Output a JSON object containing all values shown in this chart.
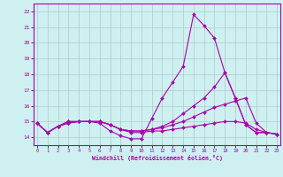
{
  "xlabel": "Windchill (Refroidissement éolien,°C)",
  "background_color": "#cff0f0",
  "grid_color": "#aacccc",
  "line_color": "#aa00aa",
  "x_ticks": [
    0,
    1,
    2,
    3,
    4,
    5,
    6,
    7,
    8,
    9,
    10,
    11,
    12,
    13,
    14,
    15,
    16,
    17,
    18,
    19,
    20,
    21,
    22,
    23
  ],
  "y_ticks": [
    14,
    15,
    16,
    17,
    18,
    19,
    20,
    21,
    22
  ],
  "xlim": [
    -0.3,
    23.3
  ],
  "ylim": [
    13.5,
    22.5
  ],
  "lines": [
    {
      "x": [
        0,
        1,
        2,
        3,
        4,
        5,
        6,
        7,
        8,
        9,
        10,
        11,
        12,
        13,
        14,
        15,
        16,
        17,
        18,
        19,
        20,
        21,
        22,
        23
      ],
      "y": [
        14.9,
        14.3,
        14.7,
        14.9,
        15.0,
        15.0,
        14.9,
        14.4,
        14.1,
        13.9,
        13.9,
        15.2,
        16.5,
        17.5,
        18.5,
        21.8,
        21.1,
        20.3,
        18.1,
        16.5,
        14.8,
        14.3,
        14.3,
        14.2
      ]
    },
    {
      "x": [
        0,
        1,
        2,
        3,
        4,
        5,
        6,
        7,
        8,
        9,
        10,
        11,
        12,
        13,
        14,
        15,
        16,
        17,
        18,
        19,
        20,
        21,
        22,
        23
      ],
      "y": [
        14.9,
        14.3,
        14.7,
        15.0,
        15.0,
        15.0,
        15.0,
        14.8,
        14.5,
        14.4,
        14.4,
        14.5,
        14.7,
        15.0,
        15.5,
        16.0,
        16.5,
        17.2,
        18.1,
        16.5,
        14.8,
        14.3,
        14.3,
        14.2
      ]
    },
    {
      "x": [
        0,
        1,
        2,
        3,
        4,
        5,
        6,
        7,
        8,
        9,
        10,
        11,
        12,
        13,
        14,
        15,
        16,
        17,
        18,
        19,
        20,
        21,
        22,
        23
      ],
      "y": [
        14.9,
        14.3,
        14.7,
        15.0,
        15.0,
        15.0,
        15.0,
        14.8,
        14.5,
        14.4,
        14.4,
        14.5,
        14.6,
        14.8,
        15.0,
        15.3,
        15.6,
        15.9,
        16.1,
        16.3,
        16.5,
        14.9,
        14.3,
        14.2
      ]
    },
    {
      "x": [
        0,
        1,
        2,
        3,
        4,
        5,
        6,
        7,
        8,
        9,
        10,
        11,
        12,
        13,
        14,
        15,
        16,
        17,
        18,
        19,
        20,
        21,
        22,
        23
      ],
      "y": [
        14.9,
        14.3,
        14.7,
        14.9,
        15.0,
        15.0,
        15.0,
        14.8,
        14.5,
        14.3,
        14.3,
        14.4,
        14.4,
        14.5,
        14.6,
        14.7,
        14.8,
        14.9,
        15.0,
        15.0,
        14.9,
        14.5,
        14.3,
        14.2
      ]
    }
  ]
}
